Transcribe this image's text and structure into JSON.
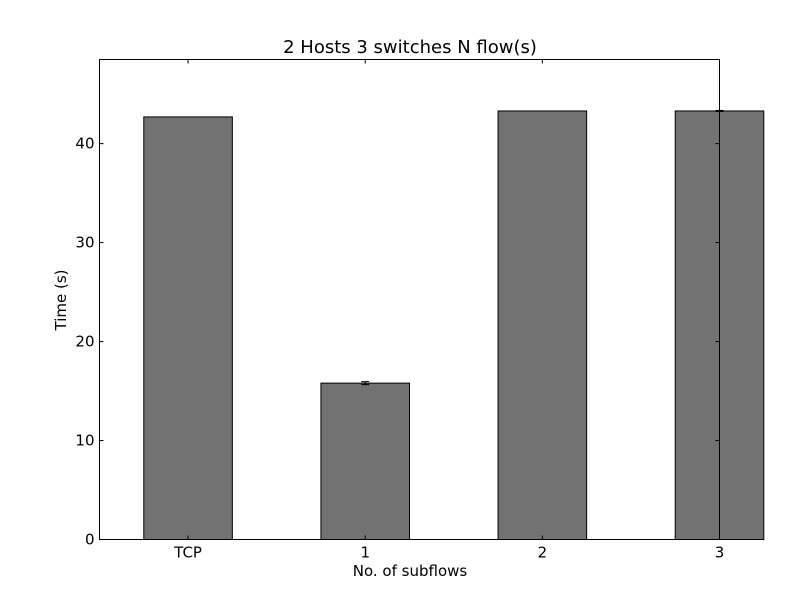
{
  "chart_data": {
    "type": "bar",
    "title": "2 Hosts 3 switches N flow(s)",
    "xlabel": "No. of subflows",
    "ylabel": "Time (s)",
    "categories": [
      "TCP",
      "1",
      "2",
      "3"
    ],
    "values": [
      42.7,
      15.8,
      43.3,
      43.3
    ],
    "errors": [
      0.0,
      0.15,
      0.0,
      0.05
    ],
    "ylim": [
      0,
      48.5
    ],
    "yticks": [
      0,
      10,
      20,
      30,
      40
    ],
    "bar_color": "#727272",
    "edge_color": "#000000",
    "grid": false
  }
}
